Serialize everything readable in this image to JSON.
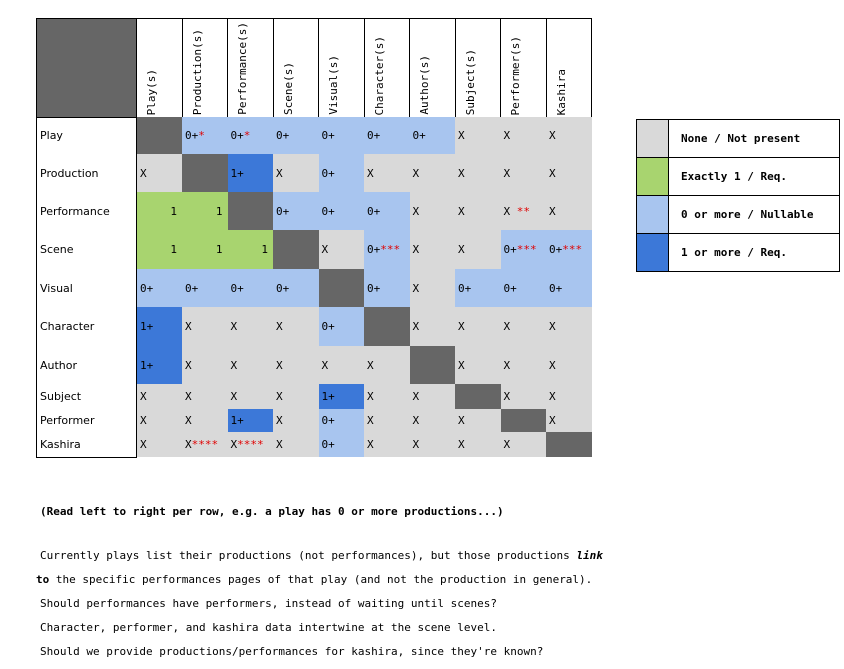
{
  "matrix": {
    "columns": [
      "Play(s)",
      "Production(s)",
      "Performance(s)",
      "Scene(s)",
      "Visual(s)",
      "Character(s)",
      "Author(s)",
      "Subject(s)",
      "Performer(s)",
      "Kashira"
    ],
    "rows": [
      {
        "label": "Play",
        "cells": [
          {
            "t": "self",
            "v": "",
            "s": ""
          },
          {
            "t": "nul",
            "v": "0+",
            "s": "*"
          },
          {
            "t": "nul",
            "v": "0+",
            "s": "*"
          },
          {
            "t": "nul",
            "v": "0+",
            "s": ""
          },
          {
            "t": "nul",
            "v": "0+",
            "s": ""
          },
          {
            "t": "nul",
            "v": "0+",
            "s": ""
          },
          {
            "t": "nul",
            "v": "0+",
            "s": ""
          },
          {
            "t": "none",
            "v": "X",
            "s": ""
          },
          {
            "t": "none",
            "v": "X",
            "s": ""
          },
          {
            "t": "none",
            "v": "X",
            "s": ""
          }
        ]
      },
      {
        "label": "Production",
        "cells": [
          {
            "t": "none",
            "v": "X",
            "s": ""
          },
          {
            "t": "self",
            "v": "",
            "s": ""
          },
          {
            "t": "req",
            "v": "1+",
            "s": ""
          },
          {
            "t": "none",
            "v": "X",
            "s": ""
          },
          {
            "t": "nul",
            "v": "0+",
            "s": ""
          },
          {
            "t": "none",
            "v": "X",
            "s": ""
          },
          {
            "t": "none",
            "v": "X",
            "s": ""
          },
          {
            "t": "none",
            "v": "X",
            "s": ""
          },
          {
            "t": "none",
            "v": "X",
            "s": ""
          },
          {
            "t": "none",
            "v": "X",
            "s": ""
          }
        ]
      },
      {
        "label": "Performance",
        "cells": [
          {
            "t": "one",
            "v": "1",
            "s": ""
          },
          {
            "t": "one",
            "v": "1",
            "s": ""
          },
          {
            "t": "self",
            "v": "",
            "s": ""
          },
          {
            "t": "nul",
            "v": "0+",
            "s": ""
          },
          {
            "t": "nul",
            "v": "0+",
            "s": ""
          },
          {
            "t": "nul",
            "v": "0+",
            "s": ""
          },
          {
            "t": "none",
            "v": "X",
            "s": ""
          },
          {
            "t": "none",
            "v": "X",
            "s": ""
          },
          {
            "t": "none",
            "v": "X",
            "s": "**"
          },
          {
            "t": "none",
            "v": "X",
            "s": ""
          }
        ]
      },
      {
        "label": "Scene",
        "cells": [
          {
            "t": "one",
            "v": "1",
            "s": ""
          },
          {
            "t": "one",
            "v": "1",
            "s": ""
          },
          {
            "t": "one",
            "v": "1",
            "s": ""
          },
          {
            "t": "self",
            "v": "",
            "s": ""
          },
          {
            "t": "none",
            "v": "X",
            "s": ""
          },
          {
            "t": "nul",
            "v": "0+",
            "s": "***"
          },
          {
            "t": "none",
            "v": "X",
            "s": ""
          },
          {
            "t": "none",
            "v": "X",
            "s": ""
          },
          {
            "t": "nul",
            "v": "0+",
            "s": "***"
          },
          {
            "t": "nul",
            "v": "0+",
            "s": "***"
          }
        ]
      },
      {
        "label": "Visual",
        "cells": [
          {
            "t": "nul",
            "v": "0+",
            "s": ""
          },
          {
            "t": "nul",
            "v": "0+",
            "s": ""
          },
          {
            "t": "nul",
            "v": "0+",
            "s": ""
          },
          {
            "t": "nul",
            "v": "0+",
            "s": ""
          },
          {
            "t": "self",
            "v": "",
            "s": ""
          },
          {
            "t": "nul",
            "v": "0+",
            "s": ""
          },
          {
            "t": "none",
            "v": "X",
            "s": ""
          },
          {
            "t": "nul",
            "v": "0+",
            "s": ""
          },
          {
            "t": "nul",
            "v": "0+",
            "s": ""
          },
          {
            "t": "nul",
            "v": "0+",
            "s": ""
          }
        ]
      },
      {
        "label": "Character",
        "cells": [
          {
            "t": "req",
            "v": "1+",
            "s": ""
          },
          {
            "t": "none",
            "v": "X",
            "s": ""
          },
          {
            "t": "none",
            "v": "X",
            "s": ""
          },
          {
            "t": "none",
            "v": "X",
            "s": ""
          },
          {
            "t": "nul",
            "v": "0+",
            "s": ""
          },
          {
            "t": "self",
            "v": "",
            "s": ""
          },
          {
            "t": "none",
            "v": "X",
            "s": ""
          },
          {
            "t": "none",
            "v": "X",
            "s": ""
          },
          {
            "t": "none",
            "v": "X",
            "s": ""
          },
          {
            "t": "none",
            "v": "X",
            "s": ""
          }
        ]
      },
      {
        "label": "Author",
        "cells": [
          {
            "t": "req",
            "v": "1+",
            "s": ""
          },
          {
            "t": "none",
            "v": "X",
            "s": ""
          },
          {
            "t": "none",
            "v": "X",
            "s": ""
          },
          {
            "t": "none",
            "v": "X",
            "s": ""
          },
          {
            "t": "none",
            "v": "X",
            "s": ""
          },
          {
            "t": "none",
            "v": "X",
            "s": ""
          },
          {
            "t": "self",
            "v": "",
            "s": ""
          },
          {
            "t": "none",
            "v": "X",
            "s": ""
          },
          {
            "t": "none",
            "v": "X",
            "s": ""
          },
          {
            "t": "none",
            "v": "X",
            "s": ""
          }
        ]
      },
      {
        "label": "Subject",
        "cells": [
          {
            "t": "none",
            "v": "X",
            "s": ""
          },
          {
            "t": "none",
            "v": "X",
            "s": ""
          },
          {
            "t": "none",
            "v": "X",
            "s": ""
          },
          {
            "t": "none",
            "v": "X",
            "s": ""
          },
          {
            "t": "req",
            "v": "1+",
            "s": ""
          },
          {
            "t": "none",
            "v": "X",
            "s": ""
          },
          {
            "t": "none",
            "v": "X",
            "s": ""
          },
          {
            "t": "self",
            "v": "",
            "s": ""
          },
          {
            "t": "none",
            "v": "X",
            "s": ""
          },
          {
            "t": "none",
            "v": "X",
            "s": ""
          }
        ]
      },
      {
        "label": "Performer",
        "cells": [
          {
            "t": "none",
            "v": "X",
            "s": ""
          },
          {
            "t": "none",
            "v": "X",
            "s": ""
          },
          {
            "t": "req",
            "v": "1+",
            "s": ""
          },
          {
            "t": "none",
            "v": "X",
            "s": ""
          },
          {
            "t": "nul",
            "v": "0+",
            "s": ""
          },
          {
            "t": "none",
            "v": "X",
            "s": ""
          },
          {
            "t": "none",
            "v": "X",
            "s": ""
          },
          {
            "t": "none",
            "v": "X",
            "s": ""
          },
          {
            "t": "self",
            "v": "",
            "s": ""
          },
          {
            "t": "none",
            "v": "X",
            "s": ""
          }
        ]
      },
      {
        "label": "Kashira",
        "cells": [
          {
            "t": "none",
            "v": "X",
            "s": ""
          },
          {
            "t": "none",
            "v": "X",
            "s": "****"
          },
          {
            "t": "none",
            "v": "X",
            "s": "****"
          },
          {
            "t": "none",
            "v": "X",
            "s": ""
          },
          {
            "t": "nul",
            "v": "0+",
            "s": ""
          },
          {
            "t": "none",
            "v": "X",
            "s": ""
          },
          {
            "t": "none",
            "v": "X",
            "s": ""
          },
          {
            "t": "none",
            "v": "X",
            "s": ""
          },
          {
            "t": "none",
            "v": "X",
            "s": ""
          },
          {
            "t": "self",
            "v": "",
            "s": ""
          }
        ]
      }
    ]
  },
  "legend": [
    {
      "type": "none",
      "label": "None / Not present",
      "color": "#d9d9d9"
    },
    {
      "type": "one",
      "label": "Exactly 1 / Req.",
      "color": "#a8d46f"
    },
    {
      "type": "nul",
      "label": "0 or more / Nullable",
      "color": "#a8c5ef"
    },
    {
      "type": "req",
      "label": "1 or more / Req.",
      "color": "#3c78d8"
    }
  ],
  "note": "(Read left to right per row, e.g. a play has 0 or more productions...)",
  "footnotes": [
    {
      "marker": "*",
      "text_a": "Currently plays list their productions (not performances), but those productions ",
      "text_emph": "link",
      "text_b": "to the specific performances pages of that play (and not the production in general)."
    },
    {
      "marker": "**",
      "text_a": "Should performances have performers, instead of waiting until scenes?"
    },
    {
      "marker": "***",
      "text_a": "Character, performer, and kashira data intertwine at the scene level."
    },
    {
      "marker": "****",
      "text_a": "Should we provide productions/performances for kashira, since they're known?"
    }
  ]
}
